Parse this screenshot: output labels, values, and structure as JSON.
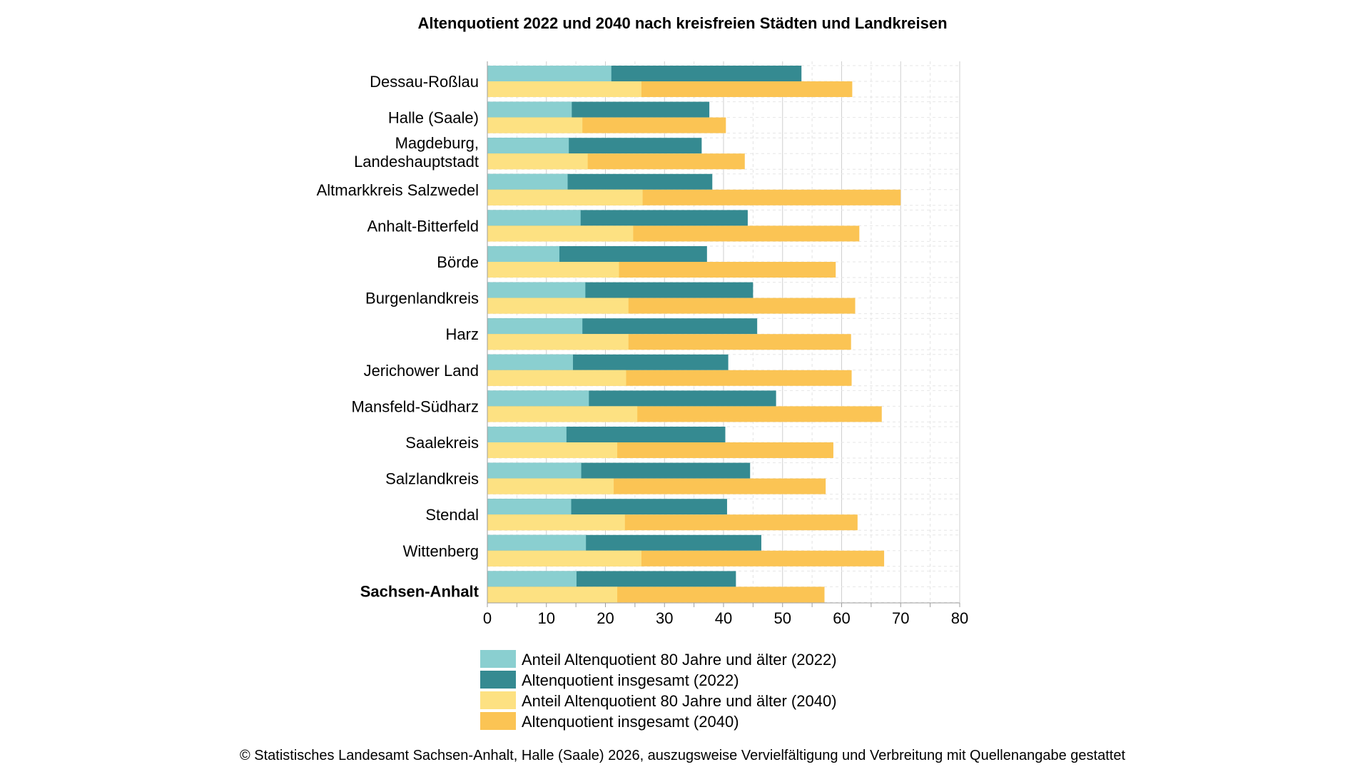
{
  "chart_data": {
    "type": "bar",
    "orientation": "horizontal",
    "title": "Altenquotient 2022 und 2040 nach kreisfreien Städten und Landkreisen",
    "xlabel": "",
    "ylabel": "",
    "xlim": [
      0,
      80
    ],
    "x_ticks": [
      0,
      10,
      20,
      30,
      40,
      50,
      60,
      70,
      80
    ],
    "grid": "vertical",
    "legend_position": "bottom",
    "categories": [
      [
        "Dessau-Roßlau"
      ],
      [
        "Halle (Saale)"
      ],
      [
        "Magdeburg,",
        "Landeshauptstadt"
      ],
      [
        "Altmarkkreis Salzwedel"
      ],
      [
        "Anhalt-Bitterfeld"
      ],
      [
        "Börde"
      ],
      [
        "Burgenlandkreis"
      ],
      [
        "Harz"
      ],
      [
        "Jerichower Land"
      ],
      [
        "Mansfeld-Südharz"
      ],
      [
        "Saalekreis"
      ],
      [
        "Salzlandkreis"
      ],
      [
        "Stendal"
      ],
      [
        "Wittenberg"
      ],
      [
        "Sachsen-Anhalt"
      ]
    ],
    "bold_categories": [
      "Sachsen-Anhalt"
    ],
    "series": [
      {
        "name": "Anteil Altenquotient 80 Jahre und älter (2022)",
        "color": "#8acfd0",
        "values": [
          21.0,
          14.3,
          13.8,
          13.6,
          15.8,
          12.2,
          16.6,
          16.1,
          14.5,
          17.2,
          13.4,
          15.9,
          14.2,
          16.7,
          15.1
        ]
      },
      {
        "name": "Altenquotient insgesamt (2022)",
        "color": "#358a91",
        "values": [
          53.2,
          37.6,
          36.3,
          38.1,
          44.1,
          37.2,
          45.0,
          45.7,
          40.8,
          48.9,
          40.3,
          44.5,
          40.6,
          46.4,
          42.1
        ]
      },
      {
        "name": "Anteil Altenquotient 80 Jahre und älter (2040)",
        "color": "#fde182",
        "values": [
          26.1,
          16.1,
          17.0,
          26.3,
          24.7,
          22.3,
          23.9,
          23.9,
          23.5,
          25.4,
          22.0,
          21.4,
          23.3,
          26.1,
          22.0
        ]
      },
      {
        "name": "Altenquotient insgesamt (2040)",
        "color": "#fbc454",
        "values": [
          61.8,
          40.4,
          43.6,
          70.0,
          63.0,
          59.0,
          62.3,
          61.6,
          61.7,
          66.8,
          58.6,
          57.3,
          62.7,
          67.2,
          57.1
        ]
      }
    ]
  },
  "footer": "© Statistisches Landesamt Sachsen-Anhalt, Halle (Saale) 2026, auszugsweise Vervielfältigung und Verbreitung mit Quellenangabe gestattet"
}
